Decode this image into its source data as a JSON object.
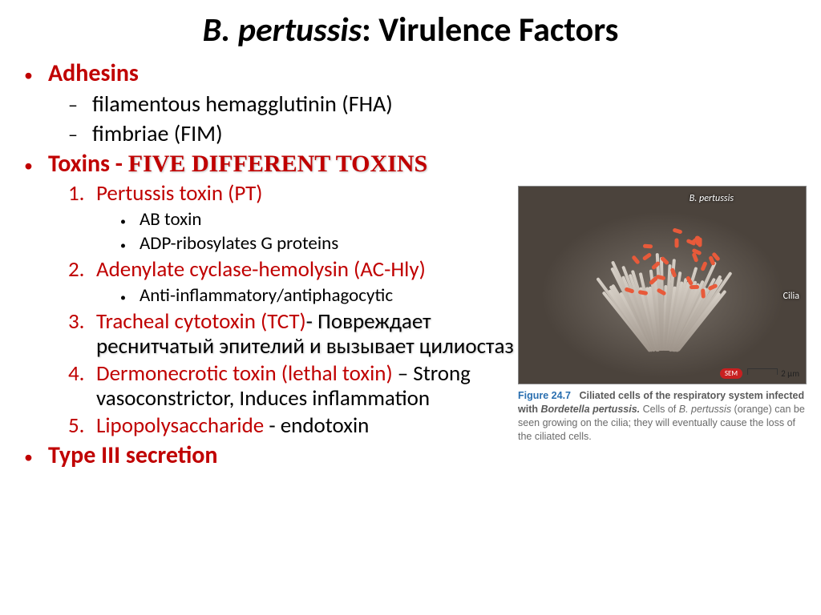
{
  "title_italic": "B. pertussis",
  "title_rest": ": Virulence Factors",
  "adhesins": {
    "label": "Adhesins",
    "items": [
      "filamentous hemagglutinin (FHA)",
      "fimbriae (FIM)"
    ]
  },
  "toxins": {
    "label": "Toxins",
    "separator": " - ",
    "highlight": "FIVE DIFFERENT TOXINS",
    "list": [
      {
        "num": "1.",
        "red": "Pertussis toxin (PT)",
        "sub": [
          "AB toxin",
          "ADP-ribosylates G proteins"
        ]
      },
      {
        "num": "2.",
        "red": "Adenylate cyclase-hemolysin (AC-Hly)",
        "sub": [
          "Anti-inflammatory/antiphagocytic"
        ]
      },
      {
        "num": "3.",
        "red": "Tracheal cytotoxin (TCT)",
        "after_red_black_shadow": "- Повреждает реснитчатый эпителий и вызывает цилиостаз",
        "sub": []
      },
      {
        "num": "4.",
        "red": "Dermonecrotic toxin (lethal toxin)",
        "after_red_black": " –  Strong vasoconstrictor, Induces inflammation",
        "sub": []
      },
      {
        "num": "5.",
        "red": "Lipopolysaccharide",
        "after_red_black": " - endotoxin",
        "sub": []
      }
    ]
  },
  "type3": "Type III secretion",
  "figure": {
    "label_top": "B. pertussis",
    "label_right": "Cilia",
    "sem": "SEM",
    "scale": "2 µm",
    "caption_num": "Figure 24.7",
    "caption_bold": "Ciliated cells of the respiratory system infected with ",
    "caption_bold_ital": "Bordetella pertussis.",
    "caption_rest_a": " Cells of ",
    "caption_rest_ital": "B. pertussis",
    "caption_rest_b": " (orange) can be seen growing on the cilia; they will eventually cause the loss of the ciliated cells."
  },
  "colors": {
    "accent_red": "#c00000",
    "body_black": "#000000",
    "caption_gray": "#6a6a6a",
    "fig_num_blue": "#2a6fb0",
    "bacteria_orange": "#e85a3a"
  }
}
